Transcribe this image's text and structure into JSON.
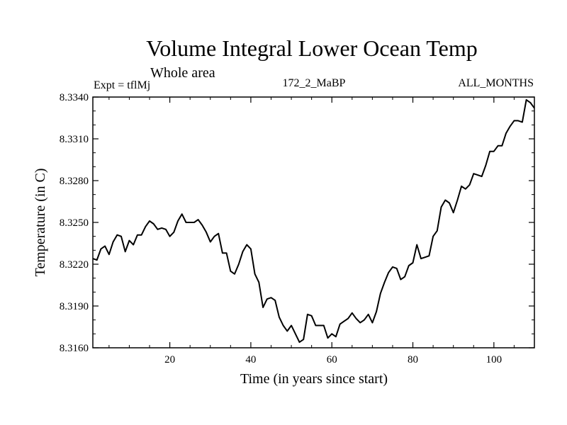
{
  "chart_data": {
    "type": "line",
    "title": "Volume Integral Lower Ocean Temp",
    "subtitle": "Whole area",
    "left_label": "Expt = tflMj",
    "center_label": "172_2_MaBP",
    "right_label": "ALL_MONTHS",
    "xlabel": "Time (in years since start)",
    "ylabel": "Temperature (in C)",
    "xlim": [
      1,
      110
    ],
    "ylim": [
      8.316,
      8.334
    ],
    "x_ticks": [
      20,
      40,
      60,
      80,
      100
    ],
    "y_ticks": [
      "8.3160",
      "8.3190",
      "8.3220",
      "8.3250",
      "8.3280",
      "8.3310",
      "8.3340"
    ],
    "line_color": "#000000",
    "series": [
      {
        "name": "Temperature",
        "x": [
          1,
          2,
          3,
          4,
          5,
          6,
          7,
          8,
          9,
          10,
          11,
          12,
          13,
          14,
          15,
          16,
          17,
          18,
          19,
          20,
          21,
          22,
          23,
          24,
          25,
          26,
          27,
          28,
          29,
          30,
          31,
          32,
          33,
          34,
          35,
          36,
          37,
          38,
          39,
          40,
          41,
          42,
          43,
          44,
          45,
          46,
          47,
          48,
          49,
          50,
          51,
          52,
          53,
          54,
          55,
          56,
          57,
          58,
          59,
          60,
          61,
          62,
          63,
          64,
          65,
          66,
          67,
          68,
          69,
          70,
          71,
          72,
          73,
          74,
          75,
          76,
          77,
          78,
          79,
          80,
          81,
          82,
          83,
          84,
          85,
          86,
          87,
          88,
          89,
          90,
          91,
          92,
          93,
          94,
          95,
          96,
          97,
          98,
          99,
          100,
          101,
          102,
          103,
          104,
          105,
          106,
          107,
          108,
          109,
          110
        ],
        "values": [
          8.3224,
          8.3223,
          8.3231,
          8.3233,
          8.3227,
          8.3236,
          8.3241,
          8.324,
          8.3229,
          8.3237,
          8.3234,
          8.3241,
          8.3241,
          8.3247,
          8.3251,
          8.3249,
          8.3245,
          8.3246,
          8.3245,
          8.324,
          8.3243,
          8.3251,
          8.3256,
          8.325,
          8.325,
          8.325,
          8.3252,
          8.3248,
          8.3243,
          8.3236,
          8.324,
          8.3242,
          8.3228,
          8.3228,
          8.3215,
          8.3213,
          8.322,
          8.3229,
          8.3234,
          8.3231,
          8.3213,
          8.3207,
          8.3189,
          8.3195,
          8.3196,
          8.3194,
          8.3182,
          8.3176,
          8.3172,
          8.3176,
          8.317,
          8.3164,
          8.3166,
          8.3184,
          8.3183,
          8.3176,
          8.3176,
          8.3176,
          8.3167,
          8.317,
          8.3168,
          8.3177,
          8.3179,
          8.3181,
          8.3185,
          8.3181,
          8.3178,
          8.318,
          8.3184,
          8.3178,
          8.3186,
          8.3199,
          8.3207,
          8.3214,
          8.3218,
          8.3217,
          8.3209,
          8.3211,
          8.3219,
          8.3221,
          8.3234,
          8.3224,
          8.3225,
          8.3226,
          8.324,
          8.3244,
          8.3261,
          8.3266,
          8.3264,
          8.3257,
          8.3266,
          8.3276,
          8.3274,
          8.3277,
          8.3285,
          8.3284,
          8.3283,
          8.3291,
          8.3301,
          8.3301,
          8.3305,
          8.3305,
          8.3314,
          8.3319,
          8.3323,
          8.3323,
          8.3322,
          8.3338,
          8.3336,
          8.3332
        ]
      }
    ]
  }
}
